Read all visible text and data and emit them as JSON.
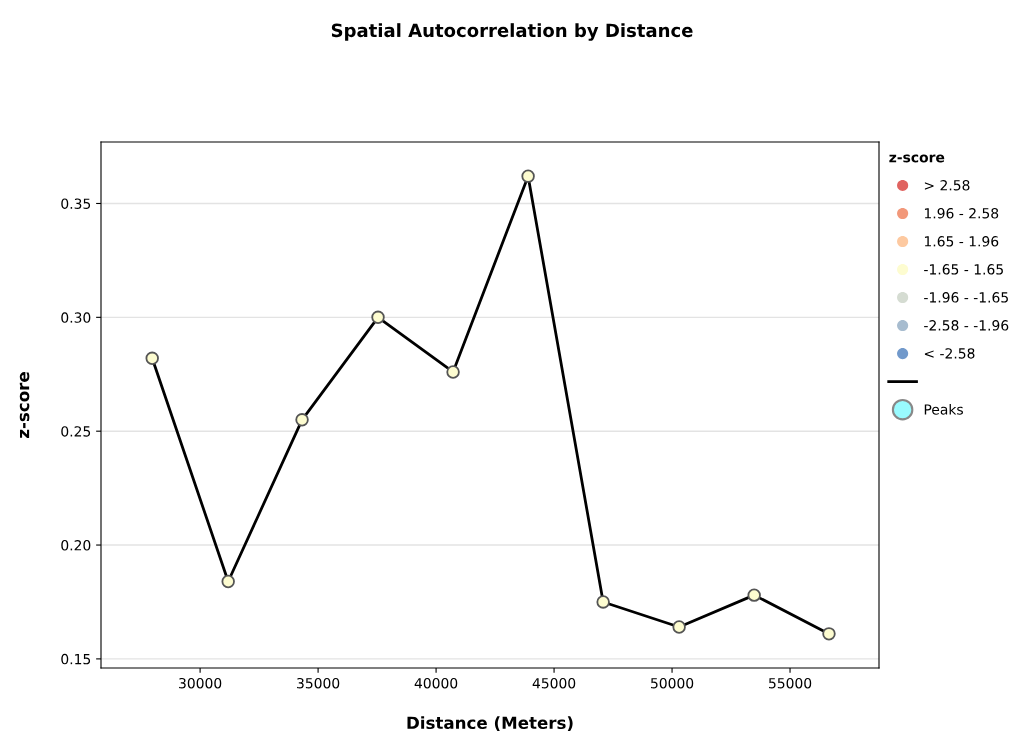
{
  "chart_data": {
    "type": "line",
    "title": "Spatial Autocorrelation by Distance",
    "xlabel": "Distance (Meters)",
    "ylabel": "z-score",
    "legend_title": "z-score",
    "x": [
      27970,
      31190,
      34320,
      37540,
      40720,
      43900,
      47080,
      50300,
      53480,
      56650
    ],
    "series": [
      {
        "color": "#000000",
        "values": [
          0.282,
          0.184,
          0.255,
          0.3,
          0.276,
          0.362,
          0.175,
          0.164,
          0.178,
          0.161
        ]
      },
      {
        "type": "scatter",
        "marker": "circle",
        "name": "> 2.58",
        "color": "#e06360",
        "values": [
          null,
          null,
          null,
          null,
          null,
          null,
          null,
          null,
          null,
          null
        ]
      },
      {
        "type": "scatter",
        "marker": "circle",
        "name": "1.96 - 2.58",
        "color": "#f2987a",
        "values": [
          null,
          null,
          null,
          null,
          null,
          null,
          null,
          null,
          null,
          null
        ]
      },
      {
        "type": "scatter",
        "marker": "circle",
        "name": "1.65 - 1.96",
        "color": "#fdc9a0",
        "values": [
          null,
          null,
          null,
          null,
          null,
          null,
          null,
          null,
          null,
          null
        ]
      },
      {
        "type": "scatter",
        "marker": "circle",
        "name": "-1.65 - 1.65",
        "color": "#fdfcd0",
        "values": [
          0.282,
          0.184,
          0.255,
          0.3,
          0.276,
          0.362,
          0.175,
          0.164,
          0.178,
          0.161
        ]
      },
      {
        "type": "scatter",
        "marker": "circle",
        "name": "-1.96 - -1.65",
        "color": "#d5dcd2",
        "values": [
          null,
          null,
          null,
          null,
          null,
          null,
          null,
          null,
          null,
          null
        ]
      },
      {
        "type": "scatter",
        "marker": "circle",
        "name": "-2.58 - -1.96",
        "color": "#a7bccf",
        "values": [
          null,
          null,
          null,
          null,
          null,
          null,
          null,
          null,
          null,
          null
        ]
      },
      {
        "type": "scatter",
        "marker": "circle",
        "name": "< -2.58",
        "color": "#7199cb",
        "values": [
          null,
          null,
          null,
          null,
          null,
          null,
          null,
          null,
          null,
          null
        ]
      },
      {
        "type": "scatter",
        "marker": "circle",
        "name": "Peaks",
        "color": "#99fbff",
        "values": [
          null,
          null,
          null,
          null,
          null,
          null,
          null,
          null,
          null,
          null
        ]
      }
    ],
    "xlim": [
      25800,
      58770
    ],
    "xticks": [
      30000,
      35000,
      40000,
      45000,
      50000,
      55000
    ],
    "ylim": [
      0.146,
      0.377
    ],
    "yticks": [
      {
        "value": 0.15,
        "label": "0.15"
      },
      {
        "value": 0.2,
        "label": "0.20"
      },
      {
        "value": 0.25,
        "label": "0.25"
      },
      {
        "value": 0.3,
        "label": "0.30"
      },
      {
        "value": 0.35,
        "label": "0.35"
      }
    ],
    "grid": "y",
    "legend": "top right"
  }
}
